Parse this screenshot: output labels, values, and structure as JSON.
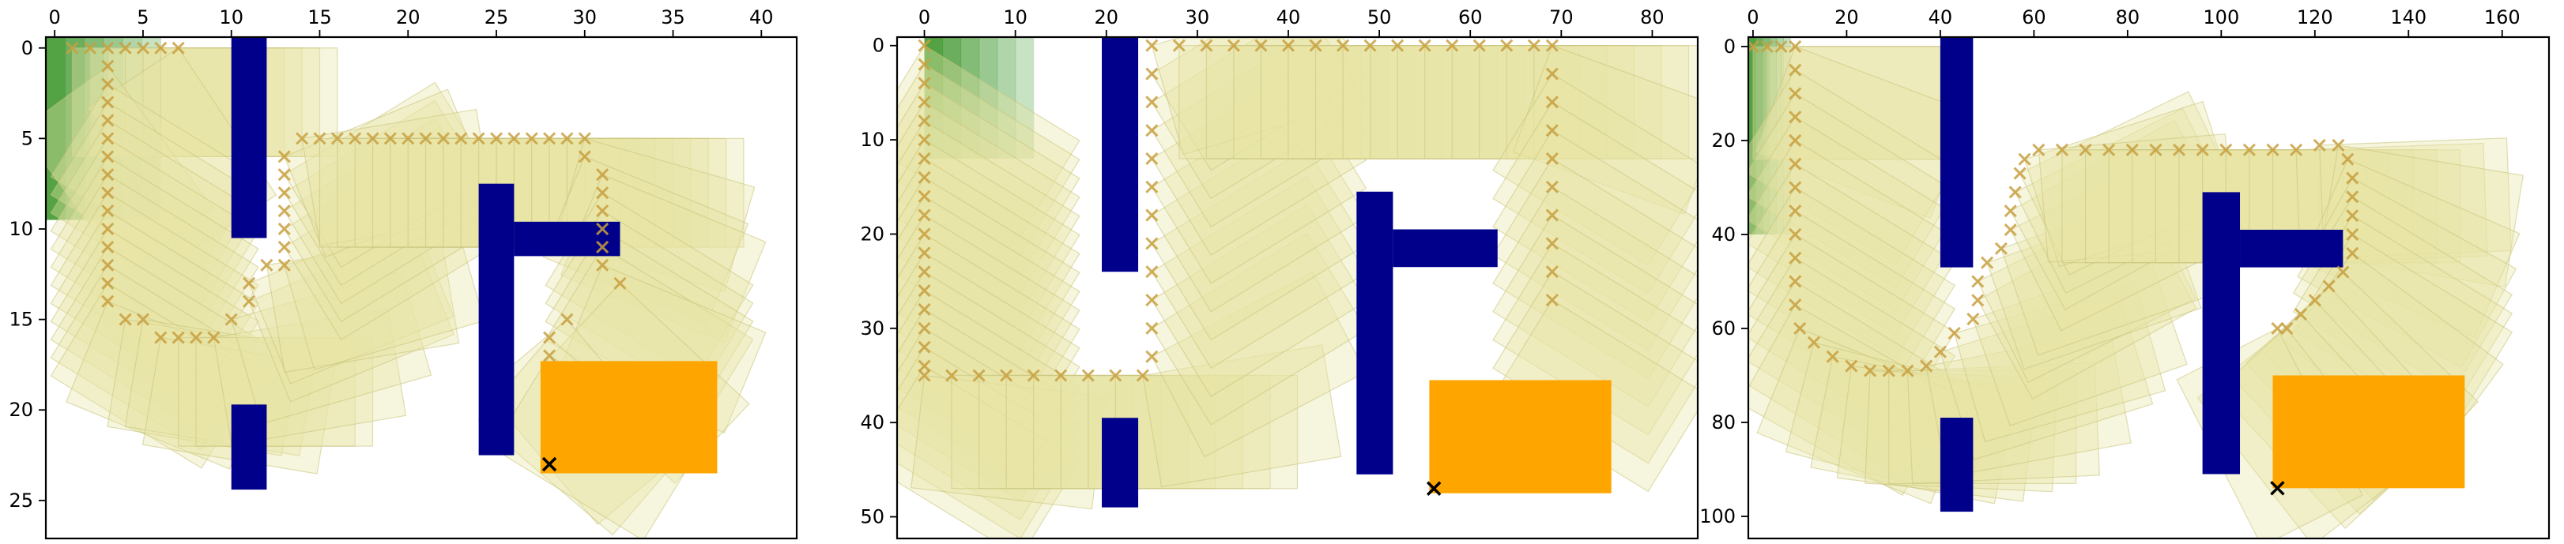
{
  "chart_data": [
    {
      "type": "scatter",
      "title": "",
      "xlabel": "",
      "ylabel": "",
      "xlim": [
        -0.5,
        42
      ],
      "ylim": [
        27.1,
        -0.6
      ],
      "x_ticks": [
        0,
        5,
        10,
        15,
        20,
        25,
        30,
        35,
        40
      ],
      "y_ticks": [
        0,
        5,
        10,
        15,
        20,
        25
      ],
      "x_axis_position": "top",
      "y_axis_inverted": true,
      "grid": false,
      "legend": "none",
      "colors": {
        "obstacle": "#00008b",
        "goal": "#ffa500",
        "start": "#4a9e3a",
        "footprint": "#e8e4a6",
        "path": "#c8a040",
        "target": "#000000"
      },
      "start_region": {
        "x": [
          -0.5,
          6
        ],
        "y": [
          -0.6,
          9.5
        ]
      },
      "obstacles": [
        {
          "x": [
            10,
            12
          ],
          "y": [
            -0.6,
            10.5
          ]
        },
        {
          "x": [
            10,
            12
          ],
          "y": [
            19.7,
            24.4
          ]
        },
        {
          "x": [
            24,
            26
          ],
          "y": [
            7.5,
            22.5
          ]
        },
        {
          "x": [
            26,
            32
          ],
          "y": [
            9.6,
            11.5
          ]
        }
      ],
      "goal_region": {
        "x": [
          27.5,
          37.5
        ],
        "y": [
          17.3,
          23.5
        ]
      },
      "target_point": [
        28,
        23
      ],
      "footprint_size": [
        10,
        6
      ],
      "path": [
        [
          1,
          0
        ],
        [
          2,
          0
        ],
        [
          3,
          0
        ],
        [
          4,
          0
        ],
        [
          5,
          0
        ],
        [
          6,
          0
        ],
        [
          7,
          0
        ],
        [
          3,
          1
        ],
        [
          3,
          2
        ],
        [
          3,
          3
        ],
        [
          3,
          4
        ],
        [
          3,
          5
        ],
        [
          3,
          6
        ],
        [
          3,
          7
        ],
        [
          3,
          8
        ],
        [
          3,
          9
        ],
        [
          3,
          10
        ],
        [
          3,
          11
        ],
        [
          3,
          12
        ],
        [
          3,
          13
        ],
        [
          3,
          14
        ],
        [
          4,
          15
        ],
        [
          5,
          15
        ],
        [
          6,
          16
        ],
        [
          7,
          16
        ],
        [
          8,
          16
        ],
        [
          9,
          16
        ],
        [
          10,
          15
        ],
        [
          11,
          14
        ],
        [
          11,
          13
        ],
        [
          12,
          12
        ],
        [
          13,
          12
        ],
        [
          13,
          11
        ],
        [
          13,
          10
        ],
        [
          13,
          9
        ],
        [
          13,
          8
        ],
        [
          13,
          7
        ],
        [
          13,
          6
        ],
        [
          14,
          5
        ],
        [
          15,
          5
        ],
        [
          16,
          5
        ],
        [
          17,
          5
        ],
        [
          18,
          5
        ],
        [
          19,
          5
        ],
        [
          20,
          5
        ],
        [
          21,
          5
        ],
        [
          22,
          5
        ],
        [
          23,
          5
        ],
        [
          24,
          5
        ],
        [
          25,
          5
        ],
        [
          26,
          5
        ],
        [
          27,
          5
        ],
        [
          28,
          5
        ],
        [
          29,
          5
        ],
        [
          30,
          5
        ],
        [
          30,
          6
        ],
        [
          31,
          7
        ],
        [
          31,
          8
        ],
        [
          31,
          9
        ],
        [
          31,
          10
        ],
        [
          31,
          11
        ],
        [
          31,
          12
        ],
        [
          32,
          13
        ],
        [
          29,
          15
        ],
        [
          28,
          16
        ],
        [
          28,
          17
        ]
      ]
    },
    {
      "type": "scatter",
      "title": "",
      "xlabel": "",
      "ylabel": "",
      "xlim": [
        -3,
        85
      ],
      "ylim": [
        52.3,
        -0.9
      ],
      "x_ticks": [
        0,
        10,
        20,
        30,
        40,
        50,
        60,
        70,
        80
      ],
      "y_ticks": [
        0,
        10,
        20,
        30,
        40,
        50
      ],
      "x_axis_position": "top",
      "y_axis_inverted": true,
      "grid": false,
      "legend": "none",
      "colors": {
        "obstacle": "#00008b",
        "goal": "#ffa500",
        "start": "#4a9e3a",
        "footprint": "#e8e4a6",
        "path": "#c8a040",
        "target": "#000000"
      },
      "start_region": {
        "x": [
          0,
          12
        ],
        "y": [
          -0.9,
          12
        ]
      },
      "obstacles": [
        {
          "x": [
            19.5,
            23.5
          ],
          "y": [
            -0.9,
            24
          ]
        },
        {
          "x": [
            19.5,
            23.5
          ],
          "y": [
            39.5,
            49
          ]
        },
        {
          "x": [
            47.5,
            51.5
          ],
          "y": [
            15.5,
            45.5
          ]
        },
        {
          "x": [
            51.5,
            63
          ],
          "y": [
            19.5,
            23.5
          ]
        }
      ],
      "goal_region": {
        "x": [
          55.5,
          75.5
        ],
        "y": [
          35.5,
          47.5
        ]
      },
      "target_point": [
        56,
        47
      ],
      "footprint_size": [
        20,
        12
      ],
      "path": [
        [
          0,
          0
        ],
        [
          0,
          2
        ],
        [
          0,
          4
        ],
        [
          0,
          6
        ],
        [
          0,
          8
        ],
        [
          0,
          10
        ],
        [
          0,
          12
        ],
        [
          0,
          14
        ],
        [
          0,
          16
        ],
        [
          0,
          18
        ],
        [
          0,
          20
        ],
        [
          0,
          22
        ],
        [
          0,
          24
        ],
        [
          0,
          26
        ],
        [
          0,
          28
        ],
        [
          0,
          30
        ],
        [
          0,
          32
        ],
        [
          0,
          34
        ],
        [
          0,
          35
        ],
        [
          3,
          35
        ],
        [
          6,
          35
        ],
        [
          9,
          35
        ],
        [
          12,
          35
        ],
        [
          15,
          35
        ],
        [
          18,
          35
        ],
        [
          21,
          35
        ],
        [
          24,
          35
        ],
        [
          25,
          33
        ],
        [
          25,
          30
        ],
        [
          25,
          27
        ],
        [
          25,
          24
        ],
        [
          25,
          21
        ],
        [
          25,
          18
        ],
        [
          25,
          15
        ],
        [
          25,
          12
        ],
        [
          25,
          9
        ],
        [
          25,
          6
        ],
        [
          25,
          3
        ],
        [
          25,
          0
        ],
        [
          28,
          0
        ],
        [
          31,
          0
        ],
        [
          34,
          0
        ],
        [
          37,
          0
        ],
        [
          40,
          0
        ],
        [
          43,
          0
        ],
        [
          46,
          0
        ],
        [
          49,
          0
        ],
        [
          52,
          0
        ],
        [
          55,
          0
        ],
        [
          58,
          0
        ],
        [
          61,
          0
        ],
        [
          64,
          0
        ],
        [
          67,
          0
        ],
        [
          69,
          0
        ],
        [
          69,
          3
        ],
        [
          69,
          6
        ],
        [
          69,
          9
        ],
        [
          69,
          12
        ],
        [
          69,
          15
        ],
        [
          69,
          18
        ],
        [
          69,
          21
        ],
        [
          69,
          24
        ],
        [
          69,
          27
        ]
      ]
    },
    {
      "type": "scatter",
      "title": "",
      "xlabel": "",
      "ylabel": "",
      "xlim": [
        -1,
        170
      ],
      "ylim": [
        104.7,
        -2
      ],
      "x_ticks": [
        0,
        20,
        40,
        60,
        80,
        100,
        120,
        140,
        160
      ],
      "y_ticks": [
        0,
        20,
        40,
        60,
        80,
        100
      ],
      "x_axis_position": "top",
      "y_axis_inverted": true,
      "grid": false,
      "legend": "none",
      "colors": {
        "obstacle": "#00008b",
        "goal": "#ffa500",
        "start": "#4a9e3a",
        "footprint": "#e8e4a6",
        "path": "#c8a040",
        "target": "#000000"
      },
      "start_region": {
        "x": [
          -1,
          8
        ],
        "y": [
          -2,
          40
        ]
      },
      "obstacles": [
        {
          "x": [
            40,
            47
          ],
          "y": [
            -2,
            47
          ]
        },
        {
          "x": [
            40,
            47
          ],
          "y": [
            79,
            99
          ]
        },
        {
          "x": [
            96,
            104
          ],
          "y": [
            31,
            91
          ]
        },
        {
          "x": [
            104,
            126
          ],
          "y": [
            39,
            47
          ]
        }
      ],
      "goal_region": {
        "x": [
          111,
          152
        ],
        "y": [
          70,
          94
        ]
      },
      "target_point": [
        112,
        94
      ],
      "footprint_size": [
        40,
        24
      ],
      "path": [
        [
          0,
          0
        ],
        [
          3,
          0
        ],
        [
          6,
          0
        ],
        [
          9,
          0
        ],
        [
          9,
          5
        ],
        [
          9,
          10
        ],
        [
          9,
          15
        ],
        [
          9,
          20
        ],
        [
          9,
          25
        ],
        [
          9,
          30
        ],
        [
          9,
          35
        ],
        [
          9,
          40
        ],
        [
          9,
          45
        ],
        [
          9,
          50
        ],
        [
          9,
          55
        ],
        [
          10,
          60
        ],
        [
          13,
          63
        ],
        [
          17,
          66
        ],
        [
          21,
          68
        ],
        [
          25,
          69
        ],
        [
          29,
          69
        ],
        [
          33,
          69
        ],
        [
          37,
          68
        ],
        [
          40,
          65
        ],
        [
          43,
          61
        ],
        [
          47,
          58
        ],
        [
          48,
          54
        ],
        [
          48,
          50
        ],
        [
          50,
          46
        ],
        [
          53,
          43
        ],
        [
          55,
          39
        ],
        [
          55,
          35
        ],
        [
          56,
          31
        ],
        [
          57,
          27
        ],
        [
          58,
          24
        ],
        [
          61,
          22
        ],
        [
          66,
          22
        ],
        [
          71,
          22
        ],
        [
          76,
          22
        ],
        [
          81,
          22
        ],
        [
          86,
          22
        ],
        [
          91,
          22
        ],
        [
          96,
          22
        ],
        [
          101,
          22
        ],
        [
          106,
          22
        ],
        [
          111,
          22
        ],
        [
          116,
          22
        ],
        [
          121,
          21
        ],
        [
          125,
          21
        ],
        [
          127,
          24
        ],
        [
          128,
          28
        ],
        [
          128,
          32
        ],
        [
          128,
          36
        ],
        [
          128,
          40
        ],
        [
          128,
          44
        ],
        [
          126,
          48
        ],
        [
          123,
          51
        ],
        [
          120,
          54
        ],
        [
          117,
          57
        ],
        [
          114,
          60
        ],
        [
          112,
          60
        ]
      ]
    }
  ]
}
